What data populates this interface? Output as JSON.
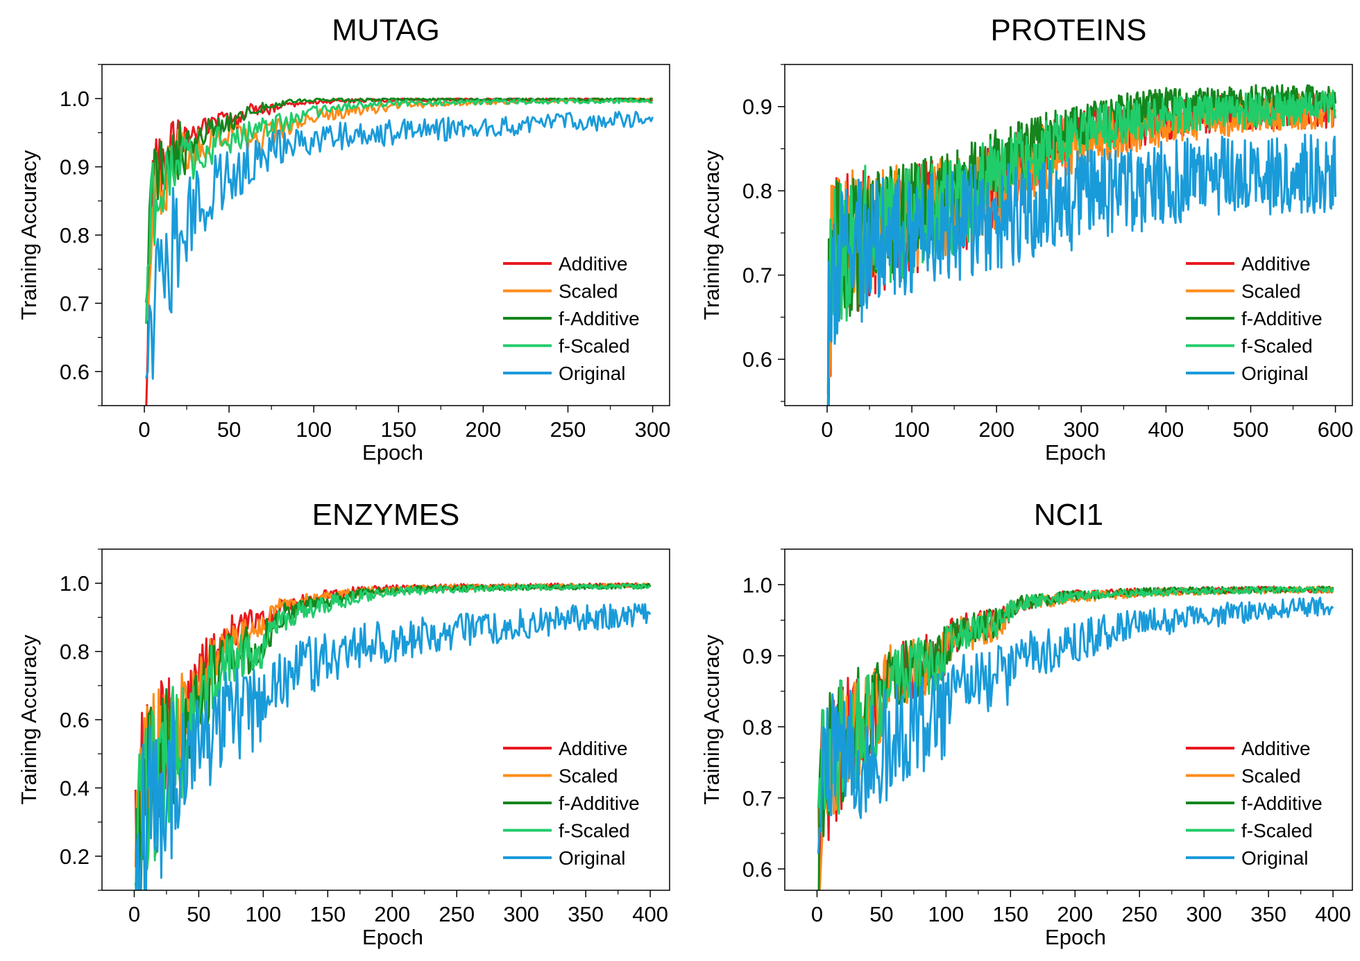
{
  "chart_data": [
    {
      "type": "line",
      "title": "MUTAG",
      "xlabel": "Epoch",
      "ylabel": "Training Accuracy",
      "xlim": [
        -25,
        310
      ],
      "ylim": [
        0.55,
        1.05
      ],
      "xticks": [
        0,
        50,
        100,
        150,
        200,
        250,
        300
      ],
      "xtick_labels": [
        "0",
        "50",
        "100",
        "150",
        "200",
        "250",
        "300"
      ],
      "yticks": [
        0.6,
        0.7,
        0.8,
        0.9,
        1.0
      ],
      "ytick_labels": [
        "0.6",
        "0.7",
        "0.8",
        "0.9",
        "1.0"
      ],
      "grid": false,
      "legend": "bottom-right",
      "series": [
        {
          "name": "Additive",
          "color": "#e8191f",
          "x": [
            1,
            3,
            5,
            8,
            12,
            18,
            25,
            35,
            45,
            55,
            62,
            70,
            80,
            100,
            150,
            200,
            250,
            300
          ],
          "y": [
            0.63,
            0.84,
            0.89,
            0.9,
            0.91,
            0.93,
            0.94,
            0.96,
            0.97,
            0.96,
            0.99,
            0.98,
            0.99,
            0.995,
            0.998,
            0.998,
            0.999,
            0.999
          ]
        },
        {
          "name": "Scaled",
          "color": "#ff8c1a",
          "x": [
            1,
            3,
            5,
            8,
            12,
            18,
            25,
            35,
            45,
            55,
            65,
            75,
            85,
            100,
            120,
            150,
            200,
            250,
            300
          ],
          "y": [
            0.62,
            0.8,
            0.85,
            0.86,
            0.88,
            0.9,
            0.92,
            0.93,
            0.95,
            0.95,
            0.93,
            0.95,
            0.96,
            0.975,
            0.98,
            0.99,
            0.995,
            0.997,
            0.998
          ]
        },
        {
          "name": "f-Additive",
          "color": "#15861d",
          "x": [
            1,
            3,
            5,
            8,
            12,
            18,
            25,
            35,
            45,
            55,
            65,
            75,
            90,
            100,
            150,
            200,
            250,
            300
          ],
          "y": [
            0.64,
            0.82,
            0.87,
            0.89,
            0.91,
            0.92,
            0.93,
            0.95,
            0.96,
            0.97,
            0.985,
            0.99,
            0.997,
            0.998,
            0.999,
            0.999,
            0.999,
            0.999
          ]
        },
        {
          "name": "f-Scaled",
          "color": "#21cc6a",
          "x": [
            1,
            3,
            5,
            8,
            12,
            18,
            25,
            35,
            45,
            55,
            65,
            75,
            90,
            100,
            120,
            150,
            200,
            250,
            300
          ],
          "y": [
            0.7,
            0.78,
            0.84,
            0.86,
            0.87,
            0.9,
            0.91,
            0.92,
            0.94,
            0.94,
            0.95,
            0.96,
            0.97,
            0.98,
            0.99,
            0.993,
            0.995,
            0.996,
            0.997
          ]
        },
        {
          "name": "Original",
          "color": "#1a9bd9",
          "x": [
            1,
            3,
            5,
            8,
            12,
            15,
            20,
            25,
            30,
            40,
            50,
            60,
            70,
            80,
            100,
            125,
            150,
            175,
            200,
            225,
            250,
            275,
            300
          ],
          "y": [
            0.55,
            0.62,
            0.65,
            0.66,
            0.75,
            0.76,
            0.8,
            0.82,
            0.84,
            0.87,
            0.88,
            0.9,
            0.92,
            0.93,
            0.94,
            0.945,
            0.95,
            0.955,
            0.96,
            0.962,
            0.965,
            0.967,
            0.968
          ]
        }
      ]
    },
    {
      "type": "line",
      "title": "PROTEINS",
      "xlabel": "Epoch",
      "ylabel": "Training Accuracy",
      "xlim": [
        -50,
        620
      ],
      "ylim": [
        0.545,
        0.95
      ],
      "xticks": [
        0,
        100,
        200,
        300,
        400,
        500,
        600
      ],
      "xtick_labels": [
        "0",
        "100",
        "200",
        "300",
        "400",
        "500",
        "600"
      ],
      "yticks": [
        0.6,
        0.7,
        0.8,
        0.9
      ],
      "ytick_labels": [
        "0.6",
        "0.7",
        "0.8",
        "0.9"
      ],
      "grid": false,
      "legend": "bottom-right",
      "series": [
        {
          "name": "Additive",
          "color": "#e8191f",
          "x": [
            1,
            5,
            10,
            20,
            40,
            60,
            100,
            150,
            200,
            250,
            300,
            350,
            400,
            450,
            500,
            550,
            600
          ],
          "y": [
            0.6,
            0.71,
            0.725,
            0.73,
            0.74,
            0.75,
            0.765,
            0.78,
            0.81,
            0.84,
            0.865,
            0.875,
            0.885,
            0.89,
            0.893,
            0.895,
            0.895
          ]
        },
        {
          "name": "Scaled",
          "color": "#ff8c1a",
          "x": [
            1,
            5,
            10,
            20,
            40,
            60,
            100,
            150,
            200,
            250,
            300,
            350,
            400,
            450,
            500,
            550,
            600
          ],
          "y": [
            0.6,
            0.71,
            0.73,
            0.735,
            0.745,
            0.755,
            0.77,
            0.785,
            0.805,
            0.835,
            0.86,
            0.87,
            0.88,
            0.885,
            0.89,
            0.893,
            0.895
          ]
        },
        {
          "name": "f-Additive",
          "color": "#15861d",
          "x": [
            1,
            5,
            10,
            20,
            40,
            60,
            100,
            150,
            200,
            250,
            300,
            350,
            400,
            450,
            500,
            550,
            600
          ],
          "y": [
            0.6,
            0.71,
            0.725,
            0.735,
            0.745,
            0.755,
            0.77,
            0.79,
            0.83,
            0.86,
            0.88,
            0.895,
            0.905,
            0.905,
            0.91,
            0.91,
            0.91
          ]
        },
        {
          "name": "f-Scaled",
          "color": "#21cc6a",
          "x": [
            1,
            5,
            10,
            20,
            40,
            60,
            100,
            150,
            200,
            250,
            300,
            350,
            400,
            450,
            500,
            550,
            600
          ],
          "y": [
            0.6,
            0.71,
            0.725,
            0.733,
            0.743,
            0.753,
            0.765,
            0.785,
            0.815,
            0.845,
            0.87,
            0.88,
            0.89,
            0.893,
            0.895,
            0.898,
            0.9
          ]
        },
        {
          "name": "Original",
          "color": "#1a9bd9",
          "x": [
            1,
            5,
            10,
            15,
            20,
            30,
            40,
            60,
            100,
            150,
            200,
            250,
            300,
            350,
            400,
            450,
            500,
            550,
            600
          ],
          "y": [
            0.59,
            0.71,
            0.715,
            0.705,
            0.72,
            0.725,
            0.73,
            0.74,
            0.75,
            0.76,
            0.77,
            0.78,
            0.79,
            0.8,
            0.81,
            0.815,
            0.818,
            0.82,
            0.82
          ]
        }
      ]
    },
    {
      "type": "line",
      "title": "ENZYMES",
      "xlabel": "Epoch",
      "ylabel": "Training Accuracy",
      "xlim": [
        -25,
        415
      ],
      "ylim": [
        0.1,
        1.1
      ],
      "xticks": [
        0,
        50,
        100,
        150,
        200,
        250,
        300,
        350,
        400
      ],
      "xtick_labels": [
        "0",
        "50",
        "100",
        "150",
        "200",
        "250",
        "300",
        "350",
        "400"
      ],
      "yticks": [
        0.2,
        0.4,
        0.6,
        0.8,
        1.0
      ],
      "ytick_labels": [
        "0.2",
        "0.4",
        "0.6",
        "0.8",
        "1.0"
      ],
      "grid": false,
      "legend": "bottom-right",
      "series": [
        {
          "name": "Additive",
          "color": "#e8191f",
          "x": [
            1,
            5,
            10,
            20,
            30,
            40,
            50,
            60,
            70,
            80,
            90,
            100,
            110,
            130,
            150,
            175,
            200,
            250,
            300,
            350,
            400
          ],
          "y": [
            0.2,
            0.35,
            0.42,
            0.5,
            0.57,
            0.63,
            0.7,
            0.8,
            0.84,
            0.86,
            0.88,
            0.87,
            0.93,
            0.95,
            0.965,
            0.98,
            0.985,
            0.99,
            0.992,
            0.993,
            0.994
          ]
        },
        {
          "name": "Scaled",
          "color": "#ff8c1a",
          "x": [
            1,
            5,
            10,
            20,
            30,
            40,
            50,
            60,
            70,
            80,
            90,
            100,
            110,
            130,
            150,
            175,
            200,
            250,
            300,
            350,
            400
          ],
          "y": [
            0.2,
            0.34,
            0.41,
            0.49,
            0.55,
            0.61,
            0.67,
            0.77,
            0.82,
            0.85,
            0.87,
            0.86,
            0.92,
            0.945,
            0.96,
            0.975,
            0.982,
            0.988,
            0.99,
            0.992,
            0.993
          ]
        },
        {
          "name": "f-Additive",
          "color": "#15861d",
          "x": [
            1,
            5,
            10,
            20,
            30,
            40,
            50,
            60,
            70,
            80,
            90,
            100,
            110,
            130,
            150,
            175,
            200,
            250,
            300,
            350,
            400
          ],
          "y": [
            0.2,
            0.32,
            0.38,
            0.45,
            0.5,
            0.56,
            0.62,
            0.73,
            0.78,
            0.8,
            0.8,
            0.82,
            0.9,
            0.93,
            0.95,
            0.97,
            0.978,
            0.985,
            0.988,
            0.99,
            0.991
          ]
        },
        {
          "name": "f-Scaled",
          "color": "#21cc6a",
          "x": [
            1,
            5,
            10,
            20,
            30,
            40,
            50,
            60,
            70,
            80,
            90,
            100,
            110,
            130,
            150,
            175,
            200,
            250,
            300,
            350,
            400
          ],
          "y": [
            0.2,
            0.32,
            0.38,
            0.44,
            0.5,
            0.55,
            0.61,
            0.72,
            0.77,
            0.79,
            0.8,
            0.81,
            0.89,
            0.92,
            0.94,
            0.96,
            0.975,
            0.983,
            0.987,
            0.99,
            0.991
          ]
        },
        {
          "name": "Original",
          "color": "#1a9bd9",
          "x": [
            1,
            5,
            10,
            20,
            30,
            40,
            50,
            60,
            70,
            80,
            90,
            100,
            110,
            130,
            150,
            175,
            200,
            250,
            300,
            350,
            400
          ],
          "y": [
            0.17,
            0.27,
            0.32,
            0.38,
            0.42,
            0.47,
            0.52,
            0.57,
            0.6,
            0.62,
            0.63,
            0.64,
            0.72,
            0.75,
            0.78,
            0.81,
            0.83,
            0.86,
            0.88,
            0.9,
            0.91
          ]
        }
      ]
    },
    {
      "type": "line",
      "title": "NCI1",
      "xlabel": "Epoch",
      "ylabel": "Training Accuracy",
      "xlim": [
        -25,
        415
      ],
      "ylim": [
        0.57,
        1.05
      ],
      "xticks": [
        0,
        50,
        100,
        150,
        200,
        250,
        300,
        350,
        400
      ],
      "xtick_labels": [
        "0",
        "50",
        "100",
        "150",
        "200",
        "250",
        "300",
        "350",
        "400"
      ],
      "yticks": [
        0.6,
        0.7,
        0.8,
        0.9,
        1.0
      ],
      "ytick_labels": [
        "0.6",
        "0.7",
        "0.8",
        "0.9",
        "1.0"
      ],
      "grid": false,
      "legend": "bottom-right",
      "series": [
        {
          "name": "Additive",
          "color": "#e8191f",
          "x": [
            1,
            3,
            6,
            10,
            20,
            30,
            45,
            50,
            55,
            70,
            95,
            100,
            105,
            125,
            145,
            150,
            160,
            200,
            250,
            300,
            350,
            400
          ],
          "y": [
            0.6,
            0.7,
            0.73,
            0.75,
            0.78,
            0.8,
            0.82,
            0.84,
            0.87,
            0.88,
            0.895,
            0.91,
            0.93,
            0.94,
            0.95,
            0.965,
            0.975,
            0.985,
            0.99,
            0.992,
            0.993,
            0.993
          ]
        },
        {
          "name": "Scaled",
          "color": "#ff8c1a",
          "x": [
            1,
            3,
            6,
            10,
            20,
            30,
            45,
            50,
            55,
            70,
            95,
            100,
            105,
            125,
            145,
            150,
            160,
            200,
            250,
            300,
            350,
            400
          ],
          "y": [
            0.6,
            0.7,
            0.73,
            0.748,
            0.775,
            0.795,
            0.815,
            0.83,
            0.865,
            0.875,
            0.89,
            0.905,
            0.925,
            0.935,
            0.948,
            0.962,
            0.973,
            0.983,
            0.988,
            0.991,
            0.992,
            0.993
          ]
        },
        {
          "name": "f-Additive",
          "color": "#15861d",
          "x": [
            1,
            3,
            6,
            10,
            20,
            30,
            45,
            50,
            55,
            70,
            95,
            100,
            105,
            125,
            145,
            150,
            160,
            200,
            250,
            300,
            350,
            400
          ],
          "y": [
            0.6,
            0.71,
            0.74,
            0.755,
            0.785,
            0.8,
            0.82,
            0.84,
            0.87,
            0.88,
            0.895,
            0.91,
            0.93,
            0.94,
            0.95,
            0.965,
            0.975,
            0.985,
            0.99,
            0.992,
            0.993,
            0.994
          ]
        },
        {
          "name": "f-Scaled",
          "color": "#21cc6a",
          "x": [
            1,
            3,
            6,
            10,
            20,
            30,
            45,
            50,
            55,
            70,
            95,
            100,
            105,
            125,
            145,
            150,
            160,
            200,
            250,
            300,
            350,
            400
          ],
          "y": [
            0.6,
            0.705,
            0.735,
            0.75,
            0.78,
            0.798,
            0.818,
            0.835,
            0.868,
            0.878,
            0.892,
            0.907,
            0.928,
            0.938,
            0.948,
            0.963,
            0.974,
            0.984,
            0.989,
            0.991,
            0.992,
            0.993
          ]
        },
        {
          "name": "Original",
          "color": "#1a9bd9",
          "x": [
            1,
            3,
            6,
            10,
            20,
            30,
            45,
            50,
            55,
            70,
            90,
            100,
            105,
            125,
            145,
            150,
            160,
            200,
            250,
            300,
            350,
            400
          ],
          "y": [
            0.585,
            0.69,
            0.72,
            0.74,
            0.75,
            0.755,
            0.76,
            0.765,
            0.78,
            0.795,
            0.81,
            0.82,
            0.845,
            0.86,
            0.87,
            0.88,
            0.895,
            0.92,
            0.945,
            0.955,
            0.965,
            0.97
          ]
        }
      ]
    }
  ]
}
